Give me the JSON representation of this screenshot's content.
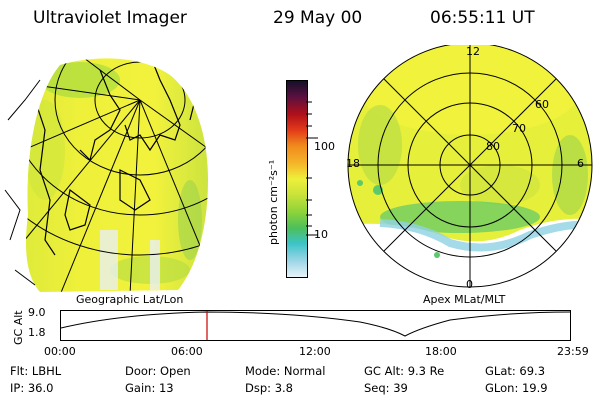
{
  "header": {
    "instrument": "Ultraviolet Imager",
    "date": "29 May 00",
    "time": "06:55:11 UT"
  },
  "left_panel": {
    "caption": "Geographic Lat/Lon"
  },
  "right_panel": {
    "caption": "Apex MLat/MLT",
    "mlt_labels": {
      "top": "12",
      "left": "18",
      "right": "6",
      "bottom": "0"
    },
    "lat_labels": [
      "60",
      "70",
      "80"
    ]
  },
  "colorbar": {
    "unit_label": "photon cm⁻²s⁻¹",
    "ticks": [
      "100",
      "10"
    ],
    "colors": [
      "#e8f4f8",
      "#9fd6e8",
      "#3cc4c8",
      "#4dbf5b",
      "#8cd33a",
      "#c9e23a",
      "#eef03a",
      "#f5b52a",
      "#f08a1c",
      "#e23a1a",
      "#b0101a",
      "#5a1040",
      "#141028"
    ]
  },
  "altitude_plot": {
    "ylabel": "GC Alt",
    "yticks": [
      "9.0",
      "1.8"
    ],
    "xticks": [
      "00:00",
      "06:00",
      "12:00",
      "18:00",
      "23:59"
    ],
    "marker_color": "#cc0000"
  },
  "info": {
    "row1": [
      {
        "label": "Flt:",
        "value": "LBHL"
      },
      {
        "label": "Door:",
        "value": "Open"
      },
      {
        "label": "Mode:",
        "value": "Normal"
      },
      {
        "label": "GC Alt:",
        "value": "9.3 Re"
      },
      {
        "label": "GLat:",
        "value": "69.3"
      }
    ],
    "row2": [
      {
        "label": "IP:",
        "value": "36.0"
      },
      {
        "label": "Gain:",
        "value": "13"
      },
      {
        "label": "Dsp:",
        "value": "3.8"
      },
      {
        "label": "Seq:",
        "value": "39"
      },
      {
        "label": "GLon:",
        "value": "19.9"
      }
    ]
  }
}
